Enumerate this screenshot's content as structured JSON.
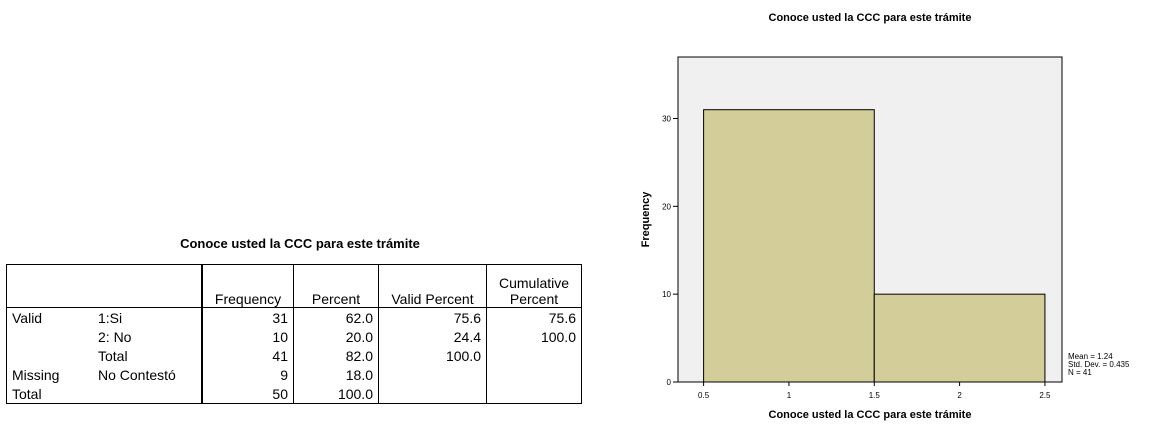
{
  "table": {
    "title": "Conoce usted la CCC para este trámite",
    "headers": [
      "",
      "",
      "Frequency",
      "Percent",
      "Valid Percent",
      "Cumulative Percent"
    ],
    "header_cumulative_line1": "Cumulative",
    "header_cumulative_line2": "Percent",
    "rows": [
      {
        "group": "Valid",
        "label": "1:Si",
        "frequency": "31",
        "percent": "62.0",
        "valid_percent": "75.6",
        "cumulative_percent": "75.6"
      },
      {
        "group": "",
        "label": "2: No",
        "frequency": "10",
        "percent": "20.0",
        "valid_percent": "24.4",
        "cumulative_percent": "100.0"
      },
      {
        "group": "",
        "label": "Total",
        "frequency": "41",
        "percent": "82.0",
        "valid_percent": "100.0",
        "cumulative_percent": ""
      },
      {
        "group": "Missing",
        "label": "No Contestó",
        "frequency": "9",
        "percent": "18.0",
        "valid_percent": "",
        "cumulative_percent": ""
      },
      {
        "group": "Total",
        "label": "",
        "frequency": "50",
        "percent": "100.0",
        "valid_percent": "",
        "cumulative_percent": ""
      }
    ]
  },
  "chart_data": {
    "type": "bar",
    "title": "Conoce usted la CCC para este trámite",
    "xlabel": "Conoce usted la CCC para este trámite",
    "ylabel": "Frequency",
    "bins": [
      {
        "from": 0.5,
        "to": 1.5,
        "value": 31
      },
      {
        "from": 1.5,
        "to": 2.5,
        "value": 10
      }
    ],
    "x_ticks": [
      "0.5",
      "1",
      "1.5",
      "2",
      "2.5"
    ],
    "y_ticks": [
      "0",
      "10",
      "20",
      "30"
    ],
    "xlim": [
      0.35,
      2.6
    ],
    "ylim": [
      0,
      37
    ],
    "stats": [
      "Mean = 1.24",
      "Std. Dev. = 0.435",
      "N = 41"
    ],
    "colors": {
      "bar_fill": "#d3cd99",
      "bar_stroke": "#000000",
      "plot_bg": "#f0f0f0"
    }
  }
}
